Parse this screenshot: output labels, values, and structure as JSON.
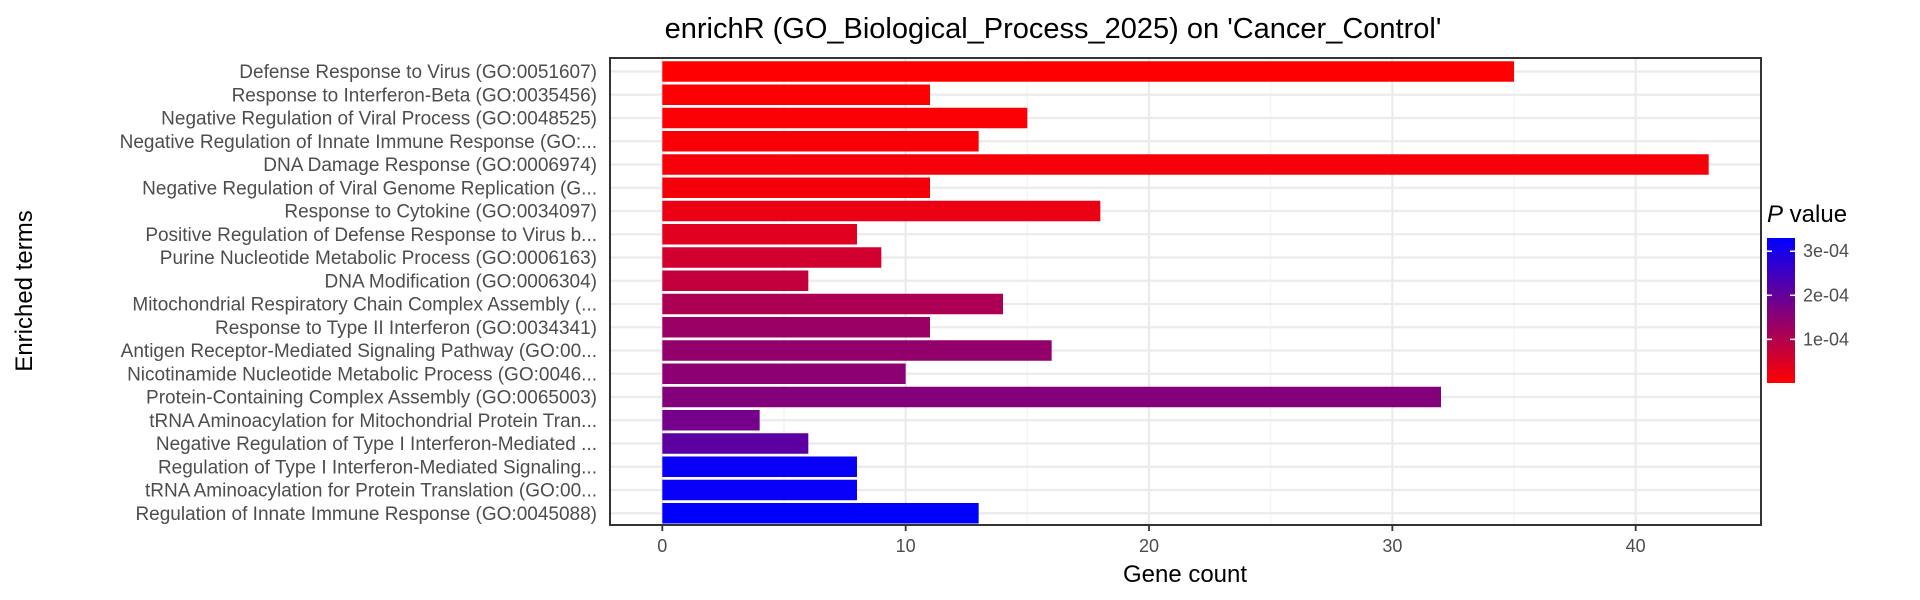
{
  "chart_data": {
    "type": "bar",
    "orientation": "horizontal",
    "title": "enrichR (GO_Biological_Process_2025) on 'Cancer_Control'",
    "xlabel": "Gene count",
    "ylabel": "Enriched terms",
    "xlim": [
      -2.15,
      45.15
    ],
    "xticks": [
      0,
      10,
      20,
      30,
      40
    ],
    "grid": true,
    "categories": [
      "Defense Response to Virus (GO:0051607)",
      "Response to Interferon-Beta (GO:0035456)",
      "Negative Regulation of Viral Process (GO:0048525)",
      "Negative Regulation of Innate Immune Response (GO:...",
      "DNA Damage Response (GO:0006974)",
      "Negative Regulation of Viral Genome Replication (G...",
      "Response to Cytokine (GO:0034097)",
      "Positive Regulation of Defense Response to Virus b...",
      "Purine Nucleotide Metabolic Process (GO:0006163)",
      "DNA Modification (GO:0006304)",
      "Mitochondrial Respiratory Chain Complex Assembly (...",
      "Response to Type II Interferon (GO:0034341)",
      "Antigen Receptor-Mediated Signaling Pathway (GO:00...",
      "Nicotinamide Nucleotide Metabolic Process (GO:0046...",
      "Protein-Containing Complex Assembly (GO:0065003)",
      "tRNA Aminoacylation for Mitochondrial Protein Tran...",
      "Negative Regulation of Type I Interferon-Mediated ...",
      "Regulation of Type I Interferon-Mediated Signaling...",
      "tRNA Aminoacylation for Protein Translation (GO:00...",
      "Regulation of Innate Immune Response (GO:0045088)"
    ],
    "values": [
      35,
      11,
      15,
      13,
      43,
      11,
      18,
      8,
      9,
      6,
      14,
      11,
      16,
      10,
      32,
      4,
      6,
      8,
      8,
      13
    ],
    "p_values": [
      1e-06,
      3e-06,
      6e-06,
      9e-06,
      1.2e-05,
      1.5e-05,
      2.5e-05,
      4e-05,
      6e-05,
      8e-05,
      0.00011,
      0.00013,
      0.00014,
      0.00015,
      0.00016,
      0.00018,
      0.00021,
      0.00032,
      0.00032,
      0.00033
    ],
    "legend": {
      "title_italic": "P",
      "title_rest": " value",
      "position": "right",
      "ticks": [
        "3e-04",
        "2e-04",
        "1e-04"
      ],
      "tick_values": [
        0.0003,
        0.0002,
        0.0001
      ],
      "range": [
        1e-06,
        0.00033
      ],
      "colors": {
        "low": "#ff0000",
        "high": "#0000ff"
      }
    }
  }
}
